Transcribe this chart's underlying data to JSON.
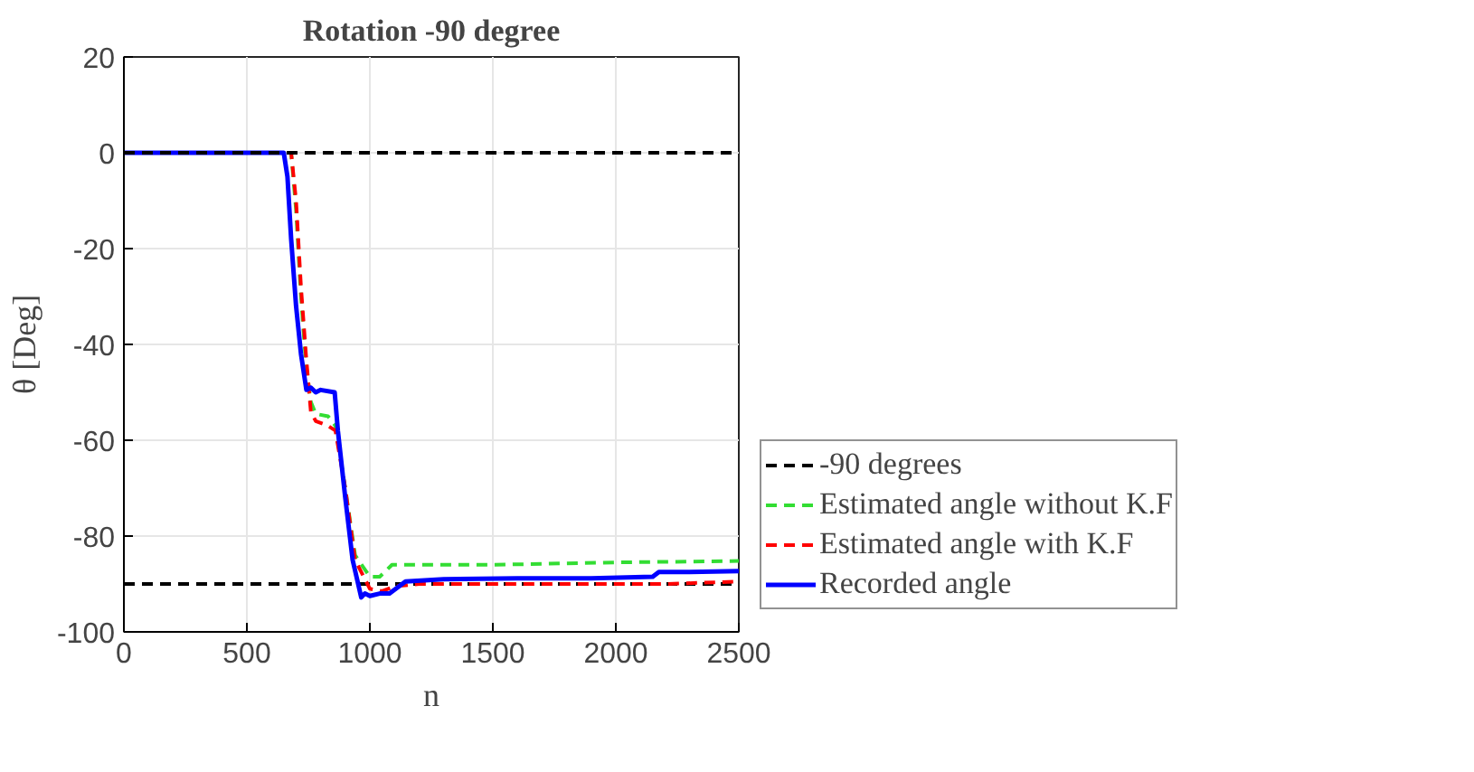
{
  "chart_data": {
    "type": "line",
    "title": "Rotation -90 degree",
    "xlabel": "n",
    "ylabel": "θ [Deg]",
    "xlim": [
      0,
      2500
    ],
    "xticks": [
      0,
      500,
      1000,
      1500,
      2000,
      2500
    ],
    "ylim": [
      -100,
      20
    ],
    "yticks": [
      -100,
      -80,
      -60,
      -40,
      -20,
      0,
      20
    ],
    "grid": true,
    "legend": "right",
    "ref_lines": [
      {
        "axis": "y",
        "value": 0,
        "color": "#000000",
        "line_style": "dashed"
      }
    ],
    "series": [
      {
        "name": "-90 degrees",
        "color": "#000000",
        "line_style": "dashed",
        "x": [
          0,
          2500
        ],
        "values": [
          -90,
          -90
        ]
      },
      {
        "name": "Estimated angle without K.F",
        "color": "#33dd33",
        "line_style": "dashed",
        "x": [
          0,
          600,
          680,
          700,
          720,
          740,
          760,
          780,
          830,
          860,
          900,
          940,
          1000,
          1040,
          1090,
          1500,
          2000,
          2500
        ],
        "values": [
          0,
          0,
          0,
          -12,
          -30,
          -44,
          -52,
          -54.5,
          -55,
          -57,
          -70,
          -84,
          -88.5,
          -88.5,
          -86,
          -86,
          -85.5,
          -85.2
        ]
      },
      {
        "name": "Estimated angle with K.F",
        "color": "#ff0000",
        "line_style": "dashed",
        "x": [
          0,
          600,
          680,
          700,
          720,
          740,
          760,
          780,
          830,
          860,
          900,
          940,
          1000,
          1050,
          1100,
          1200,
          1800,
          2200,
          2500
        ],
        "values": [
          0,
          0,
          0,
          -10,
          -28,
          -42,
          -54,
          -56,
          -57,
          -58,
          -70,
          -85,
          -91,
          -91.5,
          -90.5,
          -90,
          -90,
          -90,
          -89.5
        ]
      },
      {
        "name": "Recorded angle",
        "color": "#0000ff",
        "line_style": "solid",
        "x": [
          0,
          600,
          650,
          665,
          680,
          700,
          720,
          742,
          760,
          780,
          800,
          857,
          870,
          900,
          930,
          965,
          980,
          1000,
          1040,
          1080,
          1145,
          1300,
          1600,
          1900,
          2150,
          2175,
          2300,
          2500
        ],
        "values": [
          0,
          0,
          0,
          -5,
          -18,
          -32,
          -42,
          -49.5,
          -49,
          -50,
          -49.5,
          -50,
          -58,
          -72,
          -85,
          -92.8,
          -92,
          -92.5,
          -92,
          -92,
          -89.5,
          -89,
          -88.8,
          -88.8,
          -88.5,
          -87.5,
          -87.5,
          -87.3
        ]
      }
    ]
  }
}
